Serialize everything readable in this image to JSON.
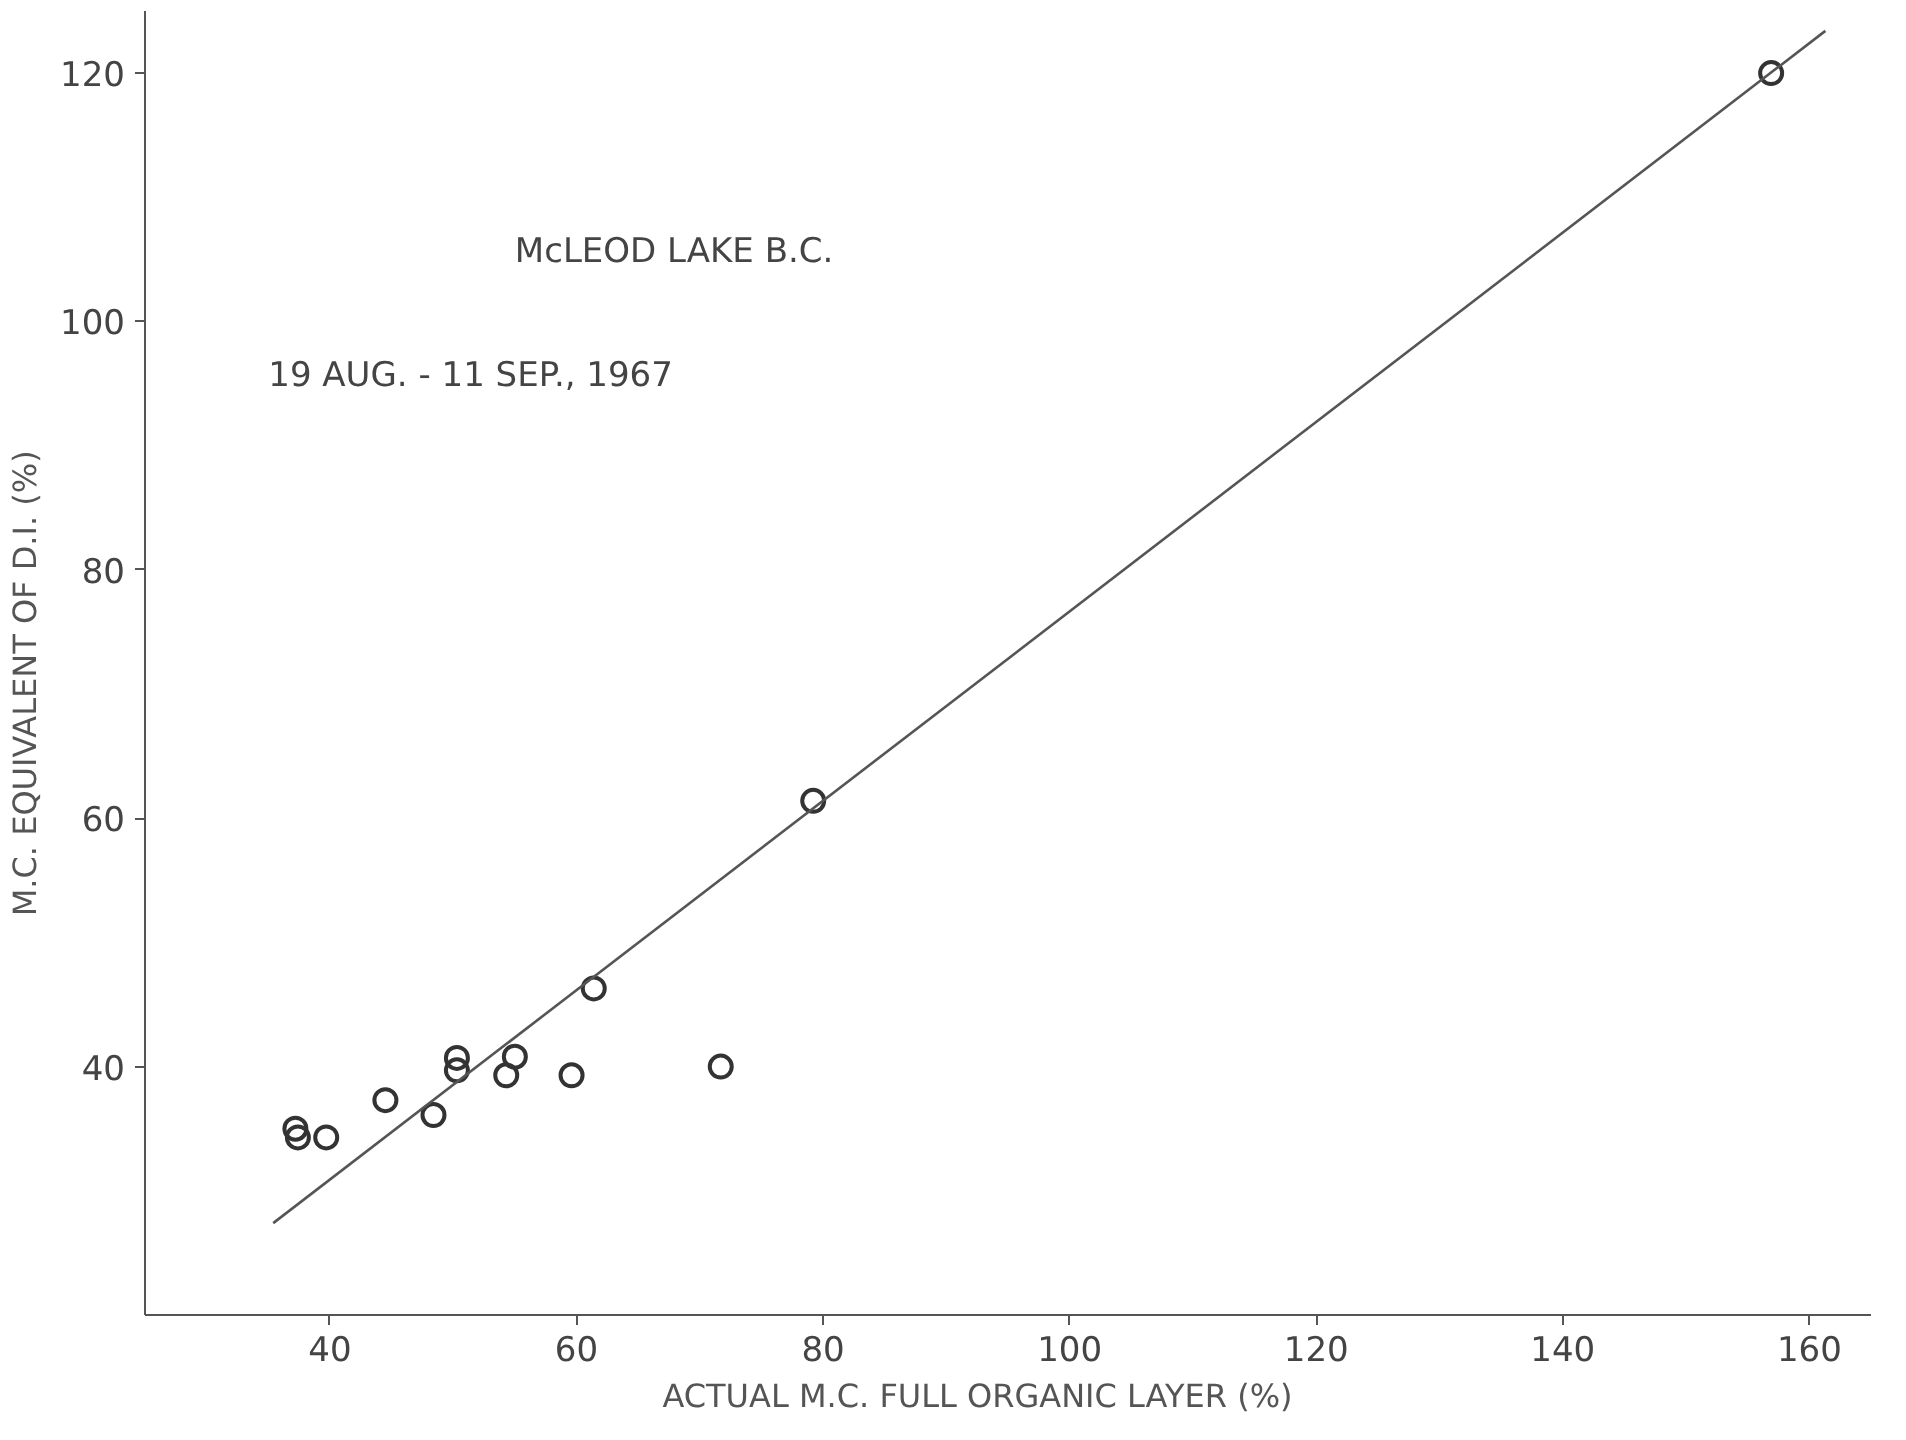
{
  "chart_data": {
    "type": "scatter",
    "xlabel": "ACTUAL  M.C.  FULL  ORGANIC  LAYER   (%)",
    "ylabel": "M.C.  EQUIVALENT  OF  D.I.  (%)",
    "annotations": [
      "McLEOD  LAKE    B.C.",
      "19 AUG.  -  11 SEP.,  1967"
    ],
    "xlim": [
      25,
      165
    ],
    "ylim": [
      20,
      125
    ],
    "xticks": [
      40,
      60,
      80,
      100,
      120,
      140,
      160
    ],
    "yticks": [
      40,
      60,
      80,
      100,
      120
    ],
    "grid": false,
    "series": [
      {
        "marker": "circle",
        "color": "#333333",
        "x": [
          156.9,
          79.2,
          61.4,
          50.3,
          50.3,
          55.0,
          54.3,
          59.6,
          71.7,
          44.5,
          48.4,
          37.2,
          37.4,
          39.7
        ],
        "values": [
          120,
          61.4,
          46.3,
          40.7,
          39.7,
          40.8,
          39.3,
          39.3,
          40.0,
          37.3,
          36.1,
          35.0,
          34.3,
          34.3
        ]
      },
      {
        "type": "line",
        "marker": "none",
        "color": "#555555",
        "x": [
          35.4,
          161.3
        ],
        "values": [
          27.4,
          123.4
        ]
      }
    ]
  }
}
